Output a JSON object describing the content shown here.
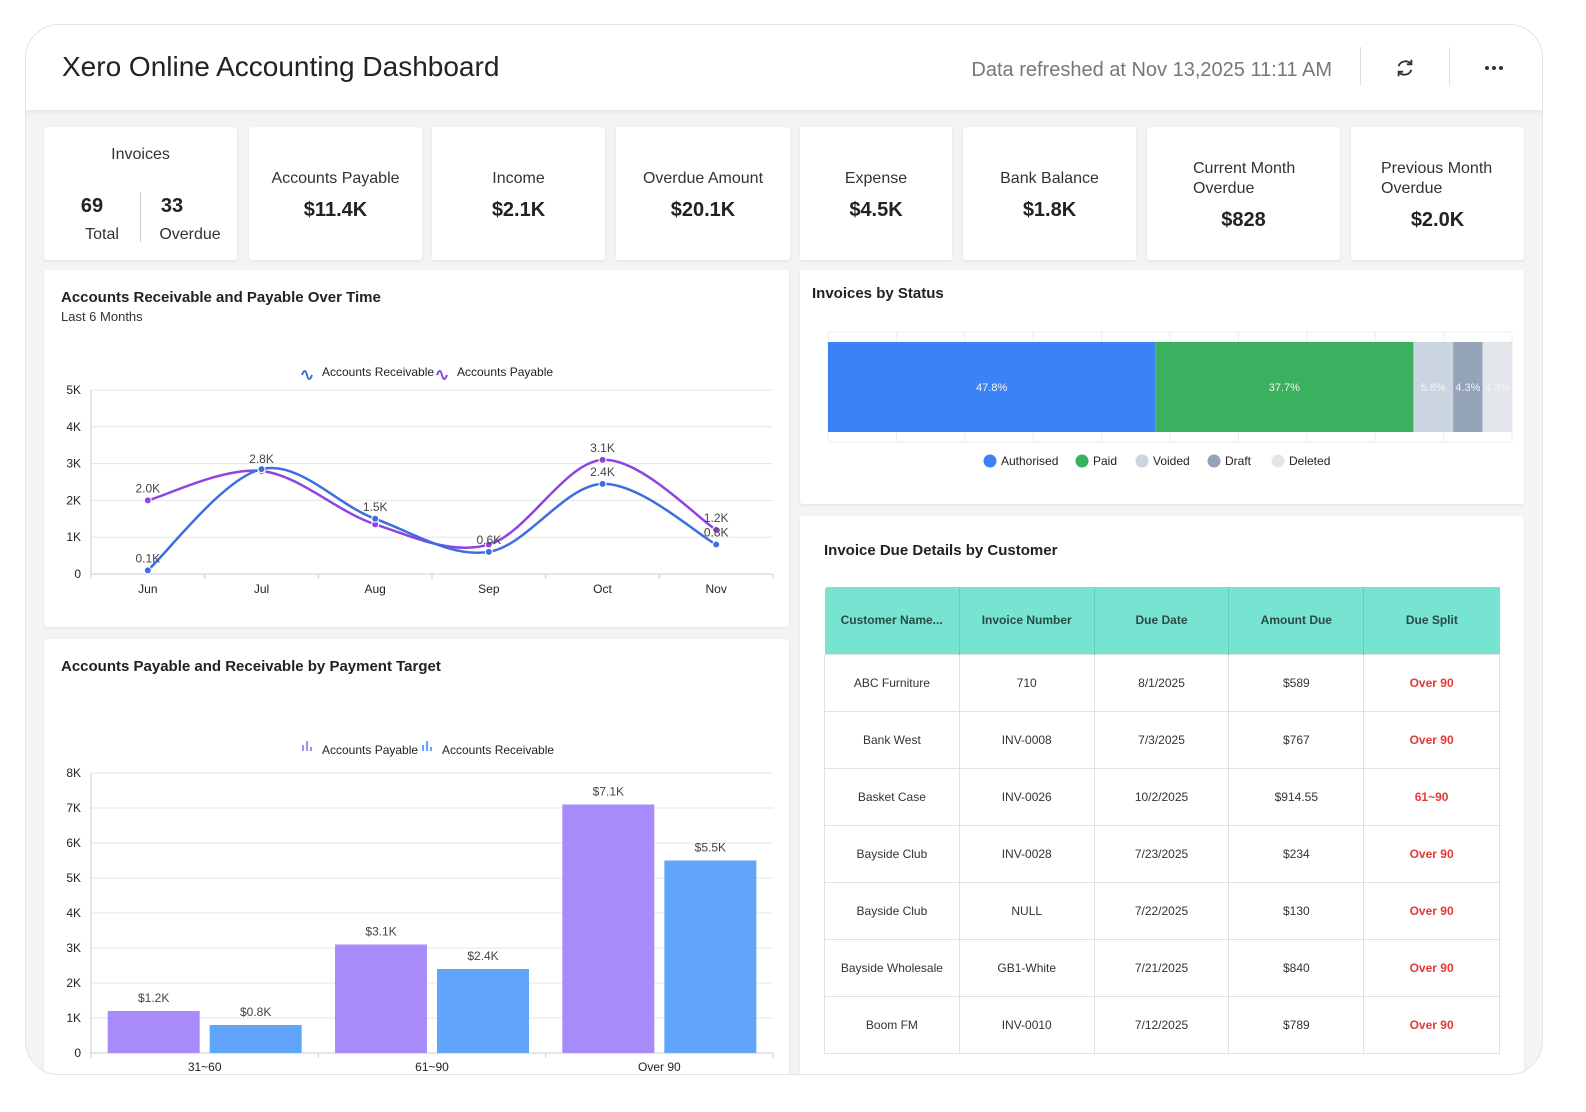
{
  "header": {
    "title": "Xero Online Accounting Dashboard",
    "refresh_text": "Data refreshed at Nov 13,2025 11:11 AM"
  },
  "kpis": {
    "invoices": {
      "label": "Invoices",
      "total_value": "69",
      "total_label": "Total",
      "overdue_value": "33",
      "overdue_label": "Overdue"
    },
    "accounts_payable": {
      "label": "Accounts Payable",
      "value": "$11.4K"
    },
    "income": {
      "label": "Income",
      "value": "$2.1K"
    },
    "overdue_amount": {
      "label": "Overdue Amount",
      "value": "$20.1K"
    },
    "expense": {
      "label": "Expense",
      "value": "$4.5K"
    },
    "bank_balance": {
      "label": "Bank Balance",
      "value": "$1.8K"
    },
    "current_month_overdue": {
      "label_line1": "Current Month",
      "label_line2": "Overdue",
      "value": "$828"
    },
    "previous_month_overdue": {
      "label_line1": "Previous Month",
      "label_line2": "Overdue",
      "value": "$2.0K"
    }
  },
  "colors": {
    "receivable_line": "#3b6fe0",
    "payable_line": "#8e44e0",
    "payable_bar": "#a78bfa",
    "receivable_bar": "#60a5fa",
    "authorised": "#3b82f6",
    "paid": "#3bb05e",
    "voided": "#cbd5e1",
    "draft": "#94a3b8",
    "deleted": "#e2e5ea",
    "table_header": "#77e3d1",
    "overdue_red": "#e53935"
  },
  "chart_data": [
    {
      "type": "line",
      "title": "Accounts Receivable and Payable Over Time",
      "subtitle": "Last 6 Months",
      "categories": [
        "Jun",
        "Jul",
        "Aug",
        "Sep",
        "Oct",
        "Nov"
      ],
      "series": [
        {
          "name": "Accounts Receivable",
          "values": [
            100,
            2850,
            1500,
            600,
            2450,
            800
          ],
          "labels": [
            "0.1K",
            "",
            "1.5K",
            "0.6K",
            "2.4K",
            "0.8K"
          ]
        },
        {
          "name": "Accounts Payable",
          "values": [
            2000,
            2800,
            1350,
            800,
            3100,
            1200
          ],
          "labels": [
            "2.0K",
            "2.8K",
            "",
            "",
            "3.1K",
            "1.2K"
          ]
        }
      ],
      "ylim": [
        0,
        5000
      ],
      "yticks": [
        "0",
        "1K",
        "2K",
        "3K",
        "4K",
        "5K"
      ],
      "legend": "top",
      "grid": true
    },
    {
      "type": "bar",
      "title": "Invoices by Status",
      "orientation": "horizontal-stacked",
      "segments": [
        {
          "name": "Authorised",
          "value": 47.8,
          "label": "47.8%"
        },
        {
          "name": "Paid",
          "value": 37.7,
          "label": "37.7%"
        },
        {
          "name": "Voided",
          "value": 5.8,
          "label": "5.8%"
        },
        {
          "name": "Draft",
          "value": 4.3,
          "label": "4.3%"
        },
        {
          "name": "Deleted",
          "value": 4.3,
          "label": "4.3%"
        }
      ],
      "legend": "bottom"
    },
    {
      "type": "bar",
      "title": "Accounts Payable and Receivable by Payment Target",
      "categories": [
        "31~60",
        "61~90",
        "Over 90"
      ],
      "series": [
        {
          "name": "Accounts Payable",
          "values": [
            1200,
            3100,
            7100
          ],
          "labels": [
            "$1.2K",
            "$3.1K",
            "$7.1K"
          ]
        },
        {
          "name": "Accounts Receivable",
          "values": [
            800,
            2400,
            5500
          ],
          "labels": [
            "$0.8K",
            "$2.4K",
            "$5.5K"
          ]
        }
      ],
      "ylim": [
        0,
        8000
      ],
      "yticks": [
        "0",
        "1K",
        "2K",
        "3K",
        "4K",
        "5K",
        "6K",
        "7K",
        "8K"
      ],
      "legend": "top",
      "grid": true
    }
  ],
  "due_table": {
    "title": "Invoice Due Details by Customer",
    "columns": [
      "Customer Name...",
      "Invoice Number",
      "Due Date",
      "Amount Due",
      "Due Split"
    ],
    "rows": [
      {
        "customer": "ABC Furniture",
        "invoice": "710",
        "due_date": "8/1/2025",
        "amount": "$589",
        "split": "Over 90"
      },
      {
        "customer": "Bank West",
        "invoice": "INV-0008",
        "due_date": "7/3/2025",
        "amount": "$767",
        "split": "Over 90"
      },
      {
        "customer": "Basket Case",
        "invoice": "INV-0026",
        "due_date": "10/2/2025",
        "amount": "$914.55",
        "split": "61~90"
      },
      {
        "customer": "Bayside Club",
        "invoice": "INV-0028",
        "due_date": "7/23/2025",
        "amount": "$234",
        "split": "Over 90"
      },
      {
        "customer": "Bayside Club",
        "invoice": "NULL",
        "due_date": "7/22/2025",
        "amount": "$130",
        "split": "Over 90"
      },
      {
        "customer": "Bayside Wholesale",
        "invoice": "GB1-White",
        "due_date": "7/21/2025",
        "amount": "$840",
        "split": "Over 90"
      },
      {
        "customer": "Boom FM",
        "invoice": "INV-0010",
        "due_date": "7/12/2025",
        "amount": "$789",
        "split": "Over 90"
      }
    ]
  },
  "icons": {
    "refresh": "refresh-icon",
    "more": "more-options-icon"
  }
}
